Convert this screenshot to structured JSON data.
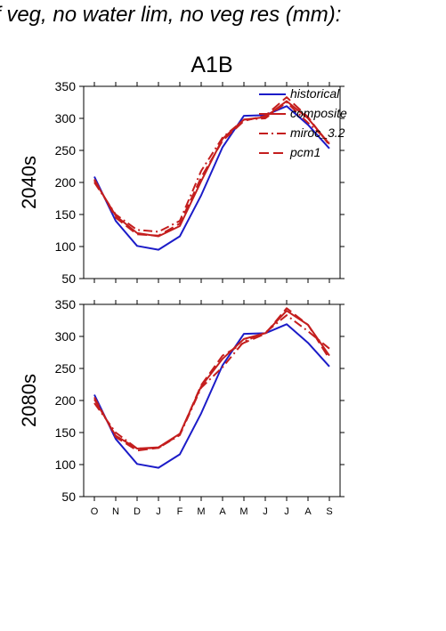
{
  "page_title": "f veg, no water lim, no veg res (mm):",
  "figure": {
    "scenario": "A1B"
  },
  "chart_data": [
    {
      "type": "line",
      "ylabel": "2040s",
      "ylim": [
        50,
        350
      ],
      "yticks": [
        50,
        100,
        150,
        200,
        250,
        300,
        350
      ],
      "categories": [
        "O",
        "N",
        "D",
        "J",
        "F",
        "M",
        "A",
        "M",
        "J",
        "J",
        "A",
        "S"
      ],
      "legend": "top-right",
      "series": [
        {
          "name": "historical",
          "color": "#1c1cc8",
          "dash": "solid",
          "values": [
            209,
            140,
            101,
            95,
            116,
            180,
            255,
            304,
            305,
            319,
            290,
            253
          ]
        },
        {
          "name": "composite",
          "color": "#c41e1e",
          "dash": "solid",
          "values": [
            203,
            148,
            121,
            116,
            132,
            202,
            268,
            298,
            302,
            327,
            300,
            260
          ]
        },
        {
          "name": "miroc_3.2",
          "color": "#c41e1e",
          "dash": "dashdot",
          "values": [
            200,
            150,
            126,
            123,
            140,
            218,
            270,
            298,
            300,
            325,
            293,
            263
          ]
        },
        {
          "name": "pcm1",
          "color": "#c41e1e",
          "dash": "longdash",
          "values": [
            205,
            145,
            119,
            117,
            136,
            208,
            265,
            296,
            304,
            333,
            302,
            258
          ]
        }
      ]
    },
    {
      "type": "line",
      "ylabel": "2080s",
      "ylim": [
        50,
        350
      ],
      "yticks": [
        50,
        100,
        150,
        200,
        250,
        300,
        350
      ],
      "categories": [
        "O",
        "N",
        "D",
        "J",
        "F",
        "M",
        "A",
        "M",
        "J",
        "J",
        "A",
        "S"
      ],
      "series": [
        {
          "name": "historical",
          "color": "#1c1cc8",
          "dash": "solid",
          "values": [
            209,
            140,
            101,
            95,
            116,
            180,
            255,
            304,
            305,
            319,
            290,
            253
          ]
        },
        {
          "name": "composite",
          "color": "#c41e1e",
          "dash": "solid",
          "values": [
            202,
            145,
            125,
            127,
            148,
            222,
            265,
            296,
            305,
            340,
            318,
            270
          ]
        },
        {
          "name": "miroc_3.2",
          "color": "#c41e1e",
          "dash": "dashdot",
          "values": [
            196,
            150,
            125,
            126,
            146,
            220,
            252,
            292,
            306,
            333,
            308,
            281
          ]
        },
        {
          "name": "pcm1",
          "color": "#c41e1e",
          "dash": "longdash",
          "values": [
            205,
            143,
            122,
            126,
            147,
            224,
            270,
            290,
            304,
            344,
            318,
            265
          ]
        }
      ]
    }
  ]
}
